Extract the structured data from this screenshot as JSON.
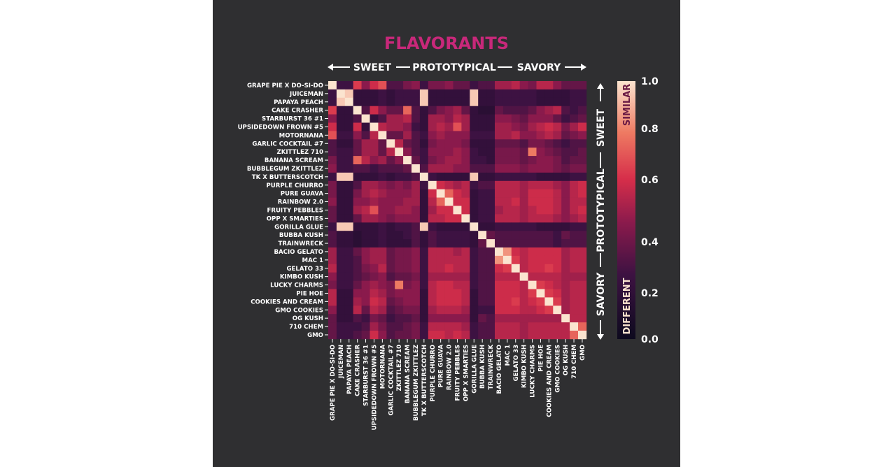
{
  "chart_data": {
    "type": "heatmap",
    "title": "FLAVORANTS",
    "spectrum_labels": [
      "SWEET",
      "PROTOTYPICAL",
      "SAVORY"
    ],
    "colorbar": {
      "min": 0.0,
      "max": 1.0,
      "ticks": [
        "0.0",
        "0.2",
        "0.4",
        "0.6",
        "0.8",
        "1.0"
      ],
      "tick_values": [
        0.0,
        0.2,
        0.4,
        0.6,
        0.8,
        1.0
      ],
      "high_label": "SIMILAR",
      "low_label": "DIFFERENT"
    },
    "categories": [
      "GRAPE PIE X DO-SI-DO",
      "JUICEMAN",
      "PAPAYA PEACH",
      "CAKE CRASHER",
      "STARBURST 36 #1",
      "UPSIDEDOWN FROWN #5",
      "MOTORNANA",
      "GARLIC COCKTAIL #7",
      "ZKITTLEZ 710",
      "BANANA SCREAM",
      "BUBBLEGUM ZKITTLEZ",
      "TK X BUTTERSCOTCH",
      "PURPLE CHURRO",
      "PURE GUAVA",
      "RAINBOW 2.0",
      "FRUITY PEBBLES",
      "OPP X SMARTIES",
      "GORILLA GLUE",
      "BUBBA KUSH",
      "TRAINWRECK",
      "BACIO GELATO",
      "MAC 1",
      "GELATO 33",
      "KIMBO KUSH",
      "LUCKY CHARMS",
      "PIE HOE",
      "COOKIES AND CREAM",
      "GMO COOKIES",
      "OG KUSH",
      "710 CHEM",
      "GMO"
    ],
    "values": [
      [
        1.0,
        0.25,
        0.25,
        0.65,
        0.45,
        0.6,
        0.7,
        0.3,
        0.3,
        0.4,
        0.45,
        0.25,
        0.4,
        0.4,
        0.45,
        0.35,
        0.35,
        0.25,
        0.3,
        0.3,
        0.5,
        0.5,
        0.55,
        0.45,
        0.4,
        0.55,
        0.55,
        0.45,
        0.35,
        0.35,
        0.35
      ],
      [
        0.25,
        1.0,
        0.95,
        0.2,
        0.2,
        0.2,
        0.25,
        0.2,
        0.25,
        0.25,
        0.25,
        0.95,
        0.2,
        0.2,
        0.2,
        0.2,
        0.2,
        0.95,
        0.2,
        0.2,
        0.25,
        0.25,
        0.25,
        0.25,
        0.25,
        0.2,
        0.2,
        0.2,
        0.2,
        0.25,
        0.25
      ],
      [
        0.25,
        0.95,
        1.0,
        0.2,
        0.2,
        0.2,
        0.25,
        0.2,
        0.25,
        0.25,
        0.25,
        0.95,
        0.2,
        0.2,
        0.2,
        0.2,
        0.2,
        0.95,
        0.2,
        0.2,
        0.25,
        0.25,
        0.25,
        0.25,
        0.25,
        0.2,
        0.2,
        0.2,
        0.2,
        0.25,
        0.25
      ],
      [
        0.65,
        0.2,
        0.2,
        1.0,
        0.3,
        0.6,
        0.45,
        0.35,
        0.35,
        0.75,
        0.3,
        0.2,
        0.3,
        0.4,
        0.45,
        0.5,
        0.35,
        0.2,
        0.15,
        0.15,
        0.35,
        0.3,
        0.3,
        0.3,
        0.35,
        0.45,
        0.5,
        0.55,
        0.3,
        0.25,
        0.3
      ],
      [
        0.45,
        0.2,
        0.2,
        0.3,
        1.0,
        0.2,
        0.3,
        0.5,
        0.5,
        0.55,
        0.3,
        0.2,
        0.5,
        0.5,
        0.45,
        0.55,
        0.5,
        0.2,
        0.2,
        0.2,
        0.45,
        0.45,
        0.4,
        0.35,
        0.45,
        0.45,
        0.45,
        0.35,
        0.25,
        0.3,
        0.35
      ],
      [
        0.6,
        0.2,
        0.2,
        0.6,
        0.2,
        1.0,
        0.55,
        0.5,
        0.5,
        0.45,
        0.25,
        0.2,
        0.5,
        0.55,
        0.5,
        0.7,
        0.5,
        0.2,
        0.2,
        0.2,
        0.5,
        0.5,
        0.45,
        0.4,
        0.5,
        0.55,
        0.6,
        0.55,
        0.4,
        0.5,
        0.6
      ],
      [
        0.7,
        0.25,
        0.25,
        0.45,
        0.3,
        0.55,
        1.0,
        0.35,
        0.35,
        0.5,
        0.3,
        0.25,
        0.45,
        0.5,
        0.45,
        0.45,
        0.45,
        0.25,
        0.25,
        0.25,
        0.5,
        0.5,
        0.55,
        0.45,
        0.45,
        0.5,
        0.55,
        0.5,
        0.35,
        0.4,
        0.45
      ],
      [
        0.3,
        0.2,
        0.2,
        0.35,
        0.5,
        0.5,
        0.35,
        1.0,
        0.55,
        0.35,
        0.3,
        0.2,
        0.4,
        0.45,
        0.45,
        0.45,
        0.4,
        0.2,
        0.2,
        0.2,
        0.35,
        0.35,
        0.35,
        0.3,
        0.4,
        0.4,
        0.35,
        0.3,
        0.25,
        0.3,
        0.3
      ],
      [
        0.3,
        0.25,
        0.25,
        0.35,
        0.5,
        0.5,
        0.35,
        0.55,
        1.0,
        0.45,
        0.3,
        0.25,
        0.45,
        0.45,
        0.45,
        0.5,
        0.45,
        0.25,
        0.2,
        0.2,
        0.4,
        0.4,
        0.4,
        0.35,
        0.8,
        0.45,
        0.4,
        0.35,
        0.3,
        0.3,
        0.35
      ],
      [
        0.4,
        0.25,
        0.25,
        0.75,
        0.55,
        0.45,
        0.5,
        0.35,
        0.45,
        1.0,
        0.35,
        0.25,
        0.4,
        0.45,
        0.5,
        0.5,
        0.45,
        0.25,
        0.25,
        0.2,
        0.4,
        0.4,
        0.4,
        0.35,
        0.4,
        0.45,
        0.45,
        0.4,
        0.3,
        0.35,
        0.35
      ],
      [
        0.45,
        0.25,
        0.25,
        0.3,
        0.3,
        0.25,
        0.3,
        0.3,
        0.3,
        0.35,
        1.0,
        0.3,
        0.5,
        0.5,
        0.5,
        0.45,
        0.45,
        0.3,
        0.3,
        0.3,
        0.45,
        0.45,
        0.45,
        0.4,
        0.45,
        0.45,
        0.45,
        0.4,
        0.35,
        0.4,
        0.4
      ],
      [
        0.25,
        0.95,
        0.95,
        0.2,
        0.2,
        0.2,
        0.25,
        0.2,
        0.25,
        0.25,
        0.3,
        1.0,
        0.25,
        0.2,
        0.2,
        0.2,
        0.2,
        0.95,
        0.2,
        0.2,
        0.25,
        0.25,
        0.25,
        0.25,
        0.25,
        0.2,
        0.2,
        0.2,
        0.2,
        0.25,
        0.25
      ],
      [
        0.4,
        0.2,
        0.2,
        0.3,
        0.5,
        0.5,
        0.45,
        0.4,
        0.45,
        0.4,
        0.5,
        0.25,
        1.0,
        0.6,
        0.55,
        0.5,
        0.55,
        0.25,
        0.3,
        0.3,
        0.55,
        0.55,
        0.55,
        0.5,
        0.55,
        0.55,
        0.55,
        0.5,
        0.45,
        0.55,
        0.6
      ],
      [
        0.4,
        0.2,
        0.2,
        0.4,
        0.5,
        0.55,
        0.5,
        0.45,
        0.45,
        0.45,
        0.5,
        0.2,
        0.6,
        1.0,
        0.75,
        0.6,
        0.55,
        0.2,
        0.25,
        0.25,
        0.55,
        0.55,
        0.55,
        0.5,
        0.6,
        0.6,
        0.6,
        0.55,
        0.45,
        0.55,
        0.6
      ],
      [
        0.45,
        0.2,
        0.2,
        0.45,
        0.45,
        0.5,
        0.45,
        0.45,
        0.45,
        0.5,
        0.5,
        0.2,
        0.55,
        0.75,
        1.0,
        0.6,
        0.6,
        0.2,
        0.25,
        0.25,
        0.55,
        0.55,
        0.6,
        0.5,
        0.6,
        0.6,
        0.6,
        0.55,
        0.45,
        0.55,
        0.55
      ],
      [
        0.35,
        0.2,
        0.2,
        0.5,
        0.55,
        0.7,
        0.45,
        0.45,
        0.5,
        0.5,
        0.45,
        0.2,
        0.5,
        0.6,
        0.6,
        1.0,
        0.6,
        0.2,
        0.25,
        0.25,
        0.5,
        0.55,
        0.55,
        0.5,
        0.55,
        0.6,
        0.6,
        0.55,
        0.45,
        0.55,
        0.6
      ],
      [
        0.35,
        0.2,
        0.2,
        0.35,
        0.5,
        0.5,
        0.45,
        0.4,
        0.45,
        0.45,
        0.45,
        0.2,
        0.55,
        0.55,
        0.6,
        0.6,
        1.0,
        0.2,
        0.25,
        0.25,
        0.55,
        0.55,
        0.55,
        0.5,
        0.55,
        0.55,
        0.55,
        0.5,
        0.45,
        0.5,
        0.55
      ],
      [
        0.25,
        0.95,
        0.95,
        0.2,
        0.2,
        0.2,
        0.25,
        0.2,
        0.25,
        0.25,
        0.3,
        0.95,
        0.25,
        0.2,
        0.2,
        0.2,
        0.2,
        1.0,
        0.2,
        0.2,
        0.25,
        0.25,
        0.25,
        0.25,
        0.25,
        0.2,
        0.2,
        0.2,
        0.2,
        0.25,
        0.25
      ],
      [
        0.3,
        0.2,
        0.2,
        0.15,
        0.2,
        0.2,
        0.25,
        0.2,
        0.2,
        0.25,
        0.3,
        0.2,
        0.3,
        0.25,
        0.25,
        0.25,
        0.25,
        0.2,
        1.0,
        0.35,
        0.3,
        0.3,
        0.3,
        0.3,
        0.3,
        0.3,
        0.3,
        0.25,
        0.35,
        0.3,
        0.3
      ],
      [
        0.3,
        0.2,
        0.2,
        0.15,
        0.2,
        0.2,
        0.25,
        0.2,
        0.2,
        0.2,
        0.3,
        0.2,
        0.3,
        0.25,
        0.25,
        0.25,
        0.25,
        0.2,
        0.35,
        1.0,
        0.3,
        0.3,
        0.3,
        0.3,
        0.3,
        0.3,
        0.3,
        0.25,
        0.3,
        0.3,
        0.3
      ],
      [
        0.5,
        0.25,
        0.25,
        0.35,
        0.45,
        0.5,
        0.5,
        0.35,
        0.4,
        0.4,
        0.45,
        0.25,
        0.55,
        0.55,
        0.55,
        0.5,
        0.55,
        0.25,
        0.3,
        0.3,
        1.0,
        0.85,
        0.6,
        0.55,
        0.6,
        0.6,
        0.6,
        0.6,
        0.5,
        0.55,
        0.55
      ],
      [
        0.5,
        0.25,
        0.25,
        0.3,
        0.45,
        0.5,
        0.5,
        0.35,
        0.4,
        0.4,
        0.45,
        0.25,
        0.55,
        0.55,
        0.55,
        0.55,
        0.55,
        0.25,
        0.3,
        0.3,
        0.85,
        1.0,
        0.65,
        0.55,
        0.6,
        0.6,
        0.6,
        0.6,
        0.5,
        0.55,
        0.55
      ],
      [
        0.55,
        0.25,
        0.25,
        0.3,
        0.4,
        0.45,
        0.55,
        0.35,
        0.4,
        0.4,
        0.45,
        0.25,
        0.55,
        0.55,
        0.6,
        0.55,
        0.55,
        0.25,
        0.3,
        0.3,
        0.6,
        0.65,
        1.0,
        0.55,
        0.6,
        0.6,
        0.65,
        0.6,
        0.5,
        0.55,
        0.55
      ],
      [
        0.45,
        0.25,
        0.25,
        0.3,
        0.35,
        0.4,
        0.45,
        0.3,
        0.35,
        0.35,
        0.4,
        0.25,
        0.5,
        0.5,
        0.5,
        0.5,
        0.5,
        0.25,
        0.3,
        0.3,
        0.55,
        0.55,
        0.55,
        1.0,
        0.55,
        0.55,
        0.55,
        0.55,
        0.5,
        0.5,
        0.5
      ],
      [
        0.4,
        0.25,
        0.25,
        0.35,
        0.45,
        0.5,
        0.45,
        0.4,
        0.8,
        0.4,
        0.45,
        0.25,
        0.55,
        0.6,
        0.6,
        0.55,
        0.55,
        0.25,
        0.3,
        0.3,
        0.6,
        0.6,
        0.6,
        0.55,
        1.0,
        0.65,
        0.6,
        0.55,
        0.5,
        0.55,
        0.55
      ],
      [
        0.55,
        0.2,
        0.2,
        0.45,
        0.45,
        0.55,
        0.5,
        0.4,
        0.45,
        0.45,
        0.45,
        0.2,
        0.55,
        0.6,
        0.6,
        0.6,
        0.55,
        0.2,
        0.3,
        0.3,
        0.6,
        0.6,
        0.6,
        0.55,
        0.65,
        1.0,
        0.65,
        0.6,
        0.5,
        0.55,
        0.55
      ],
      [
        0.55,
        0.2,
        0.2,
        0.5,
        0.45,
        0.6,
        0.55,
        0.35,
        0.4,
        0.45,
        0.45,
        0.2,
        0.55,
        0.6,
        0.6,
        0.6,
        0.55,
        0.2,
        0.3,
        0.3,
        0.6,
        0.6,
        0.65,
        0.55,
        0.6,
        0.65,
        1.0,
        0.65,
        0.5,
        0.55,
        0.55
      ],
      [
        0.45,
        0.2,
        0.2,
        0.55,
        0.35,
        0.55,
        0.5,
        0.3,
        0.35,
        0.4,
        0.4,
        0.2,
        0.5,
        0.55,
        0.55,
        0.55,
        0.5,
        0.2,
        0.25,
        0.25,
        0.6,
        0.6,
        0.6,
        0.55,
        0.55,
        0.6,
        0.65,
        1.0,
        0.5,
        0.55,
        0.55
      ],
      [
        0.35,
        0.2,
        0.2,
        0.3,
        0.25,
        0.4,
        0.35,
        0.25,
        0.3,
        0.3,
        0.35,
        0.2,
        0.45,
        0.45,
        0.45,
        0.45,
        0.45,
        0.2,
        0.35,
        0.3,
        0.5,
        0.5,
        0.5,
        0.5,
        0.5,
        0.5,
        0.5,
        0.5,
        1.0,
        0.55,
        0.55
      ],
      [
        0.35,
        0.25,
        0.25,
        0.25,
        0.3,
        0.5,
        0.4,
        0.3,
        0.3,
        0.35,
        0.4,
        0.25,
        0.55,
        0.55,
        0.55,
        0.55,
        0.5,
        0.25,
        0.3,
        0.3,
        0.55,
        0.55,
        0.55,
        0.5,
        0.55,
        0.55,
        0.55,
        0.55,
        0.55,
        1.0,
        0.75
      ],
      [
        0.35,
        0.25,
        0.25,
        0.3,
        0.35,
        0.6,
        0.45,
        0.3,
        0.35,
        0.35,
        0.4,
        0.25,
        0.6,
        0.6,
        0.55,
        0.6,
        0.55,
        0.25,
        0.3,
        0.3,
        0.55,
        0.55,
        0.55,
        0.5,
        0.55,
        0.55,
        0.55,
        0.55,
        0.55,
        0.75,
        1.0
      ]
    ]
  }
}
